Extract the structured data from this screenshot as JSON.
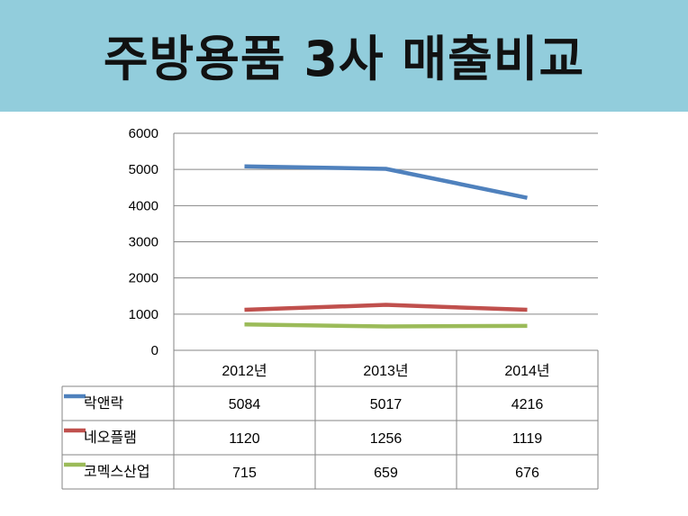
{
  "header": {
    "title": "주방용품 3사 매출비교"
  },
  "chart_data": {
    "type": "line",
    "title": "주방용품 3사 매출비교",
    "categories": [
      "2012년",
      "2013년",
      "2014년"
    ],
    "ylim": [
      0,
      6000
    ],
    "yticks": [
      0,
      1000,
      2000,
      3000,
      4000,
      5000,
      6000
    ],
    "grid": true,
    "legend": "data-table-left",
    "series": [
      {
        "name": "락앤락",
        "color": "#4f81bd",
        "values": [
          5084,
          5017,
          4216
        ]
      },
      {
        "name": "네오플램",
        "color": "#c0504d",
        "values": [
          1120,
          1256,
          1119
        ]
      },
      {
        "name": "코멕스산업",
        "color": "#9bbb59",
        "values": [
          715,
          659,
          676
        ]
      }
    ]
  }
}
